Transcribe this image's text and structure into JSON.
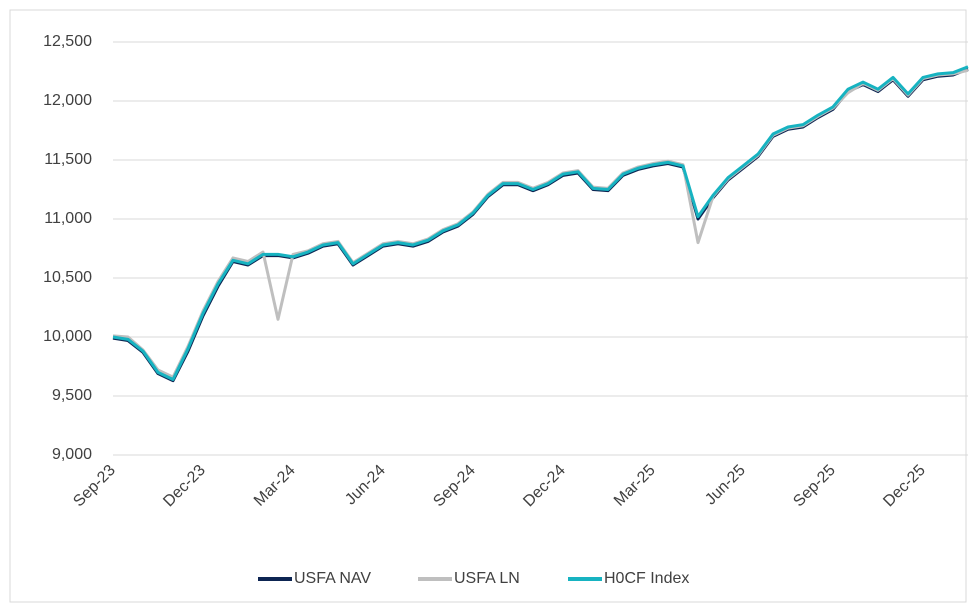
{
  "chart_data": {
    "type": "line",
    "categories": [
      "Sep-23",
      null,
      null,
      null,
      null,
      null,
      "Dec-23",
      null,
      null,
      null,
      null,
      null,
      "Mar-24",
      null,
      null,
      null,
      null,
      null,
      "Jun-24",
      null,
      null,
      null,
      null,
      null,
      "Sep-24",
      null,
      null,
      null,
      null,
      null,
      "Dec-24",
      null,
      null,
      null,
      null,
      null,
      "Mar-25",
      null,
      null,
      null,
      null,
      null,
      "Jun-25",
      null,
      null,
      null,
      null,
      null,
      "Sep-25",
      null,
      null,
      null,
      null,
      null,
      "Dec-25",
      null,
      null,
      null
    ],
    "series": [
      {
        "name": "USFA NAV",
        "color": "#0d2552",
        "values": [
          9990,
          9970,
          9870,
          9690,
          9630,
          9880,
          10180,
          10430,
          10640,
          10610,
          10690,
          10690,
          10670,
          10710,
          10770,
          10790,
          10610,
          10690,
          10770,
          10790,
          10770,
          10810,
          10890,
          10940,
          11040,
          11190,
          11290,
          11290,
          11240,
          11290,
          11370,
          11390,
          11250,
          11240,
          11370,
          11420,
          11450,
          11470,
          11440,
          11000,
          11180,
          11330,
          11430,
          11530,
          11700,
          11760,
          11780,
          11860,
          11930,
          12080,
          12140,
          12080,
          12180,
          12040,
          12180,
          12210,
          12220,
          12270
        ]
      },
      {
        "name": "USFA LN",
        "color": "#bfbfbf",
        "values": [
          10010,
          10000,
          9890,
          9720,
          9660,
          9920,
          10220,
          10470,
          10670,
          10640,
          10720,
          10150,
          10700,
          10730,
          10790,
          10810,
          10630,
          10710,
          10790,
          10810,
          10790,
          10830,
          10910,
          10960,
          11060,
          11210,
          11310,
          11310,
          11260,
          11310,
          11390,
          11410,
          11270,
          11260,
          11390,
          11440,
          11470,
          11490,
          11460,
          10800,
          11190,
          11340,
          11440,
          11540,
          11710,
          11770,
          11790,
          11870,
          11940,
          12070,
          12150,
          12090,
          12190,
          12050,
          12190,
          12220,
          12230,
          12260
        ]
      },
      {
        "name": "H0CF Index",
        "color": "#17b3c1",
        "values": [
          10000,
          9980,
          9880,
          9700,
          9640,
          9900,
          10200,
          10450,
          10650,
          10620,
          10700,
          10700,
          10680,
          10720,
          10780,
          10800,
          10620,
          10700,
          10780,
          10800,
          10780,
          10820,
          10900,
          10950,
          11050,
          11200,
          11300,
          11300,
          11250,
          11300,
          11380,
          11400,
          11260,
          11250,
          11380,
          11430,
          11460,
          11480,
          11450,
          11020,
          11200,
          11350,
          11450,
          11550,
          11720,
          11780,
          11800,
          11880,
          11950,
          12100,
          12160,
          12100,
          12200,
          12060,
          12200,
          12230,
          12240,
          12290
        ]
      }
    ],
    "ylim": [
      9000,
      12500
    ],
    "yticks": [
      {
        "value": 9000,
        "label": "9,000"
      },
      {
        "value": 9500,
        "label": "9,500"
      },
      {
        "value": 10000,
        "label": "10,000"
      },
      {
        "value": 10500,
        "label": "10,500"
      },
      {
        "value": 11000,
        "label": "11,000"
      },
      {
        "value": 11500,
        "label": "11,500"
      },
      {
        "value": 12000,
        "label": "12,000"
      },
      {
        "value": 12500,
        "label": "12,500"
      }
    ],
    "grid": true,
    "legend": "bottom"
  }
}
